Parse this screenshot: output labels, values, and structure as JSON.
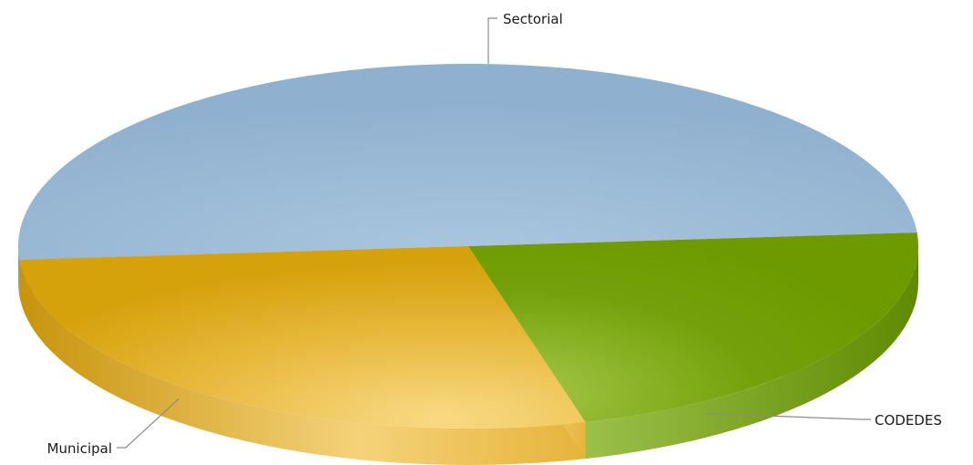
{
  "chart_data": {
    "type": "pie",
    "title": "",
    "style": "3d",
    "legend": "none",
    "slices": [
      {
        "label": "Sectorial",
        "value": 50.0,
        "color": "#94b4d2"
      },
      {
        "label": "CODEDES",
        "value": 22.0,
        "color": "#76a300"
      },
      {
        "label": "Municipal",
        "value": 28.0,
        "color": "#e3b030"
      }
    ]
  }
}
